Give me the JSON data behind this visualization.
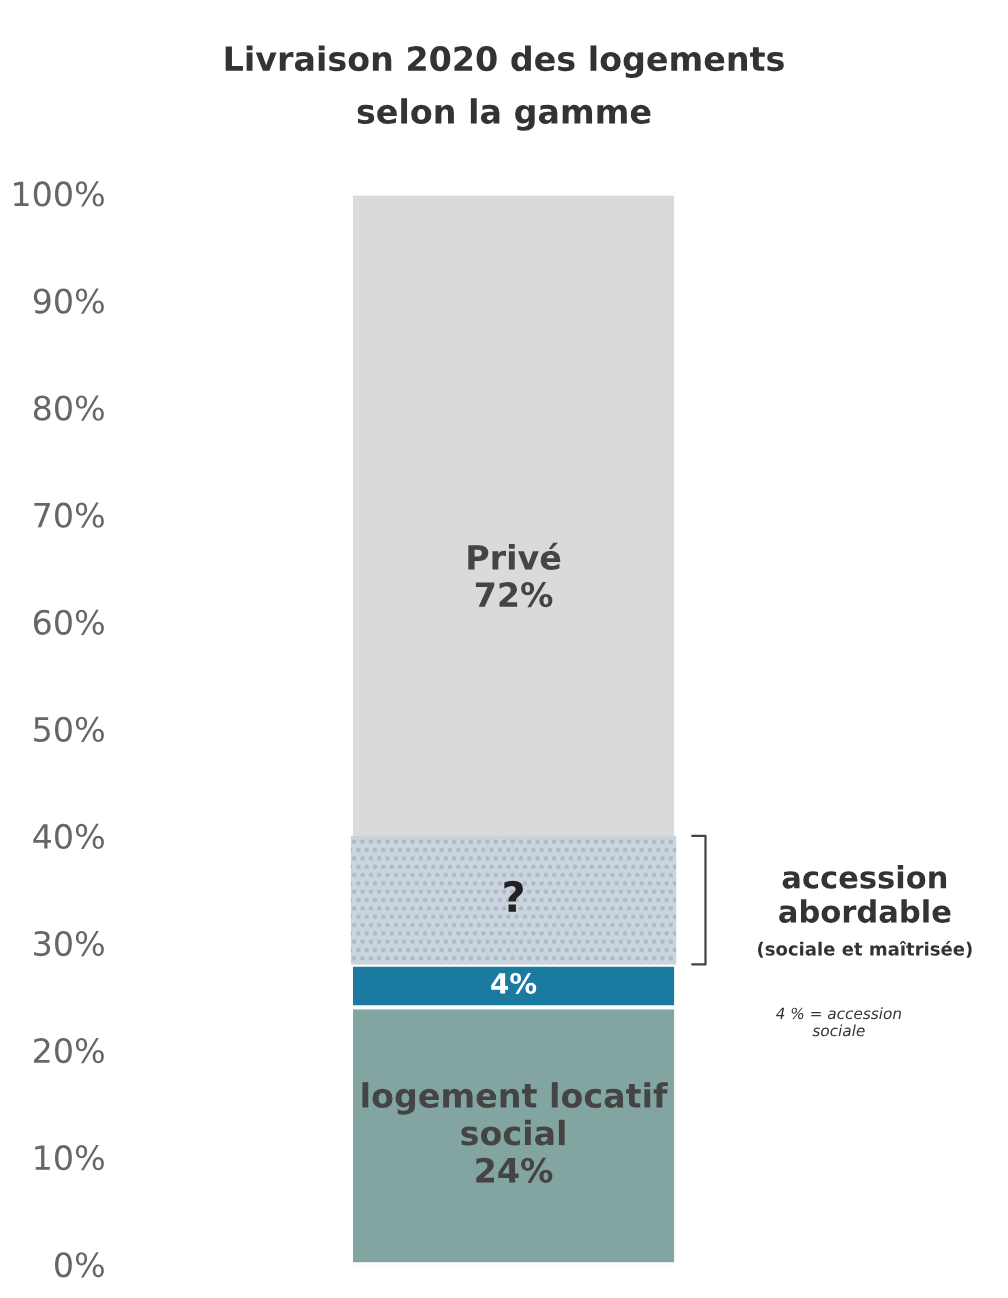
{
  "chart_data": {
    "type": "bar",
    "stacked": true,
    "title": "Livraison 2020 des logements\nselon la gamme",
    "categories": [
      null
    ],
    "series": [
      {
        "name": "logement locatif\nsocial",
        "color": "#83a5a1",
        "values": [
          24
        ],
        "value_labels": [
          "24%"
        ]
      },
      {
        "color": "#1a7aa0",
        "values": [
          4
        ],
        "value_labels": [
          "4%"
        ]
      },
      {
        "name": "Privé",
        "color": "#dadada",
        "values": [
          72
        ],
        "value_labels": [
          "72%"
        ]
      }
    ],
    "bands": [
      {
        "axis": "y",
        "from": 28,
        "to": 40,
        "label": "?",
        "color": "#c9d4de"
      }
    ],
    "annotations": [
      "accession\nabordable",
      "(sociale et maîtrisée)",
      "4 % = accession\nsociale"
    ],
    "ylim": [
      0,
      100
    ],
    "yticks": [
      {
        "value": 0,
        "label": "0%"
      },
      {
        "value": 10,
        "label": "10%"
      },
      {
        "value": 20,
        "label": "20%"
      },
      {
        "value": 30,
        "label": "30%"
      },
      {
        "value": 40,
        "label": "40%"
      },
      {
        "value": 50,
        "label": "50%"
      },
      {
        "value": 60,
        "label": "60%"
      },
      {
        "value": 70,
        "label": "70%"
      },
      {
        "value": 80,
        "label": "80%"
      },
      {
        "value": 90,
        "label": "90%"
      },
      {
        "value": 100,
        "label": "100%"
      }
    ],
    "grid": false,
    "legend": false
  }
}
